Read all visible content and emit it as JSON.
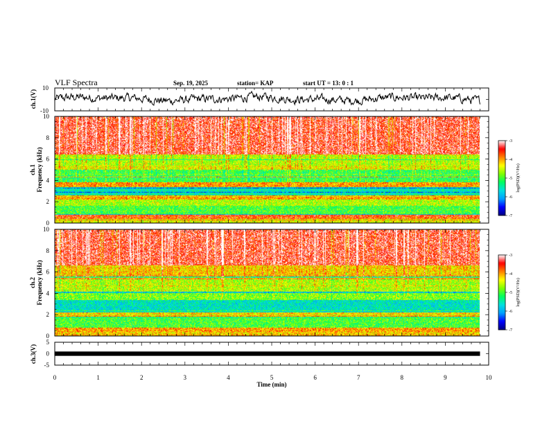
{
  "header": {
    "title": "VLF Spectra",
    "date": "Sep. 19, 2025",
    "station": "station= KAP",
    "start": "start  UT =   13: 0  : 1"
  },
  "chart_data": [
    {
      "type": "line",
      "name": "ch1-waveform",
      "ylabel": "ch.1(V)",
      "ylim": [
        -10,
        10
      ],
      "yticks": [
        "10",
        "-10"
      ],
      "xlim": [
        0,
        10
      ],
      "data_end_min": 9.8,
      "mean_v": 0.5,
      "amplitude_v": 5
    },
    {
      "type": "heatmap",
      "name": "ch1-spectrogram",
      "ylabel_top": "ch.1",
      "ylabel": "Frequency (kHz)",
      "ylim": [
        0,
        10
      ],
      "yticks": [
        "0",
        "2",
        "4",
        "6",
        "8",
        "10"
      ],
      "xlim": [
        0,
        10
      ],
      "data_end_min": 9.8,
      "colorbar": {
        "label": "log(PSD)(V²/Hz)",
        "min": -7,
        "max": -3,
        "ticks": [
          "-3",
          "-4",
          "-5",
          "-6",
          "-7"
        ]
      },
      "bands": [
        {
          "from_khz": 0.0,
          "to_khz": 0.4,
          "level": -4.4
        },
        {
          "from_khz": 0.4,
          "to_khz": 0.8,
          "level": -3.6
        },
        {
          "from_khz": 0.8,
          "to_khz": 1.6,
          "level": -5.0
        },
        {
          "from_khz": 1.6,
          "to_khz": 2.2,
          "level": -4.6
        },
        {
          "from_khz": 2.2,
          "to_khz": 2.6,
          "level": -4.0
        },
        {
          "from_khz": 2.6,
          "to_khz": 3.4,
          "level": -5.5
        },
        {
          "from_khz": 3.4,
          "to_khz": 3.8,
          "level": -4.0
        },
        {
          "from_khz": 3.8,
          "to_khz": 5.0,
          "level": -5.1
        },
        {
          "from_khz": 5.0,
          "to_khz": 5.4,
          "level": -4.4
        },
        {
          "from_khz": 5.4,
          "to_khz": 6.4,
          "level": -4.6
        },
        {
          "from_khz": 6.4,
          "to_khz": 10.0,
          "level": -3.4
        }
      ]
    },
    {
      "type": "heatmap",
      "name": "ch2-spectrogram",
      "ylabel_top": "ch.2",
      "ylabel": "Frequency (kHz)",
      "ylim": [
        0,
        10
      ],
      "yticks": [
        "0",
        "2",
        "4",
        "6",
        "8",
        "10"
      ],
      "xlim": [
        0,
        10
      ],
      "data_end_min": 9.8,
      "colorbar": {
        "label": "log(PSD)(V²/Hz)",
        "min": -7,
        "max": -3,
        "ticks": [
          "-3",
          "-4",
          "-5",
          "-6",
          "-7"
        ]
      },
      "bands": [
        {
          "from_khz": 0.0,
          "to_khz": 0.4,
          "level": -4.2
        },
        {
          "from_khz": 0.4,
          "to_khz": 0.8,
          "level": -4.0
        },
        {
          "from_khz": 0.8,
          "to_khz": 1.8,
          "level": -5.0
        },
        {
          "from_khz": 1.8,
          "to_khz": 2.2,
          "level": -4.2
        },
        {
          "from_khz": 2.2,
          "to_khz": 3.4,
          "level": -5.6
        },
        {
          "from_khz": 3.4,
          "to_khz": 4.0,
          "level": -4.8
        },
        {
          "from_khz": 4.0,
          "to_khz": 5.4,
          "level": -4.6
        },
        {
          "from_khz": 5.4,
          "to_khz": 6.6,
          "level": -4.2
        },
        {
          "from_khz": 6.6,
          "to_khz": 10.0,
          "level": -3.4
        }
      ]
    },
    {
      "type": "line",
      "name": "ch3-waveform",
      "ylabel": "ch.3(V)",
      "ylim": [
        -5,
        5
      ],
      "yticks": [
        "5",
        "0",
        "-5"
      ],
      "xlim": [
        0,
        10
      ],
      "data_end_min": 9.8,
      "level_v": 0,
      "band_half_width_v": 0.5
    }
  ],
  "xaxis": {
    "label": "Time (min)",
    "ticks": [
      "0",
      "1",
      "2",
      "3",
      "4",
      "5",
      "6",
      "7",
      "8",
      "9",
      "10"
    ]
  },
  "colors": {
    "colormap": [
      "#000080",
      "#0000ff",
      "#00a0ff",
      "#00e0e0",
      "#00ff60",
      "#80ff00",
      "#ffff00",
      "#ff8000",
      "#ff0000",
      "#ffffff"
    ]
  }
}
